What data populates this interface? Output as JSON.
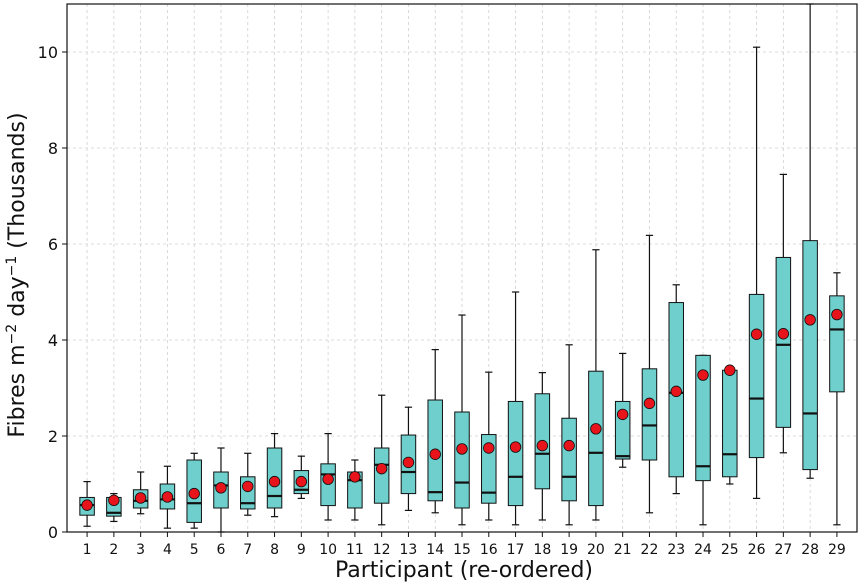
{
  "chart_data": {
    "type": "box",
    "title": "",
    "xlabel": "Participant (re-ordered)",
    "ylabel_main": "Fibres m",
    "ylabel_sup1": "−2",
    "ylabel_mid": " day",
    "ylabel_sup2": "−1",
    "ylabel_end": " (Thousands)",
    "ylim": [
      0,
      11
    ],
    "yticks": [
      0,
      2,
      4,
      6,
      8,
      10
    ],
    "ytick_labels": [
      "0",
      "2",
      "4",
      "6",
      "8",
      "10"
    ],
    "grid": true,
    "colors": {
      "box_fill": "#6ecfcc",
      "box_edge": "#111111",
      "mean_marker": "#e8141c",
      "grid": "#d0d0d0"
    },
    "participants": [
      {
        "label": "1",
        "whislo": 0.12,
        "q1": 0.35,
        "med": 0.56,
        "q3": 0.72,
        "whishi": 1.05,
        "mean": 0.56
      },
      {
        "label": "2",
        "whislo": 0.22,
        "q1": 0.33,
        "med": 0.4,
        "q3": 0.72,
        "whishi": 0.8,
        "mean": 0.66
      },
      {
        "label": "3",
        "whislo": 0.38,
        "q1": 0.5,
        "med": 0.65,
        "q3": 0.88,
        "whishi": 1.25,
        "mean": 0.71
      },
      {
        "label": "4",
        "whislo": 0.08,
        "q1": 0.48,
        "med": 0.68,
        "q3": 1.0,
        "whishi": 1.37,
        "mean": 0.73
      },
      {
        "label": "5",
        "whislo": 0.08,
        "q1": 0.2,
        "med": 0.6,
        "q3": 1.5,
        "whishi": 1.64,
        "mean": 0.8
      },
      {
        "label": "6",
        "whislo": 0.0,
        "q1": 0.5,
        "med": 0.97,
        "q3": 1.25,
        "whishi": 1.75,
        "mean": 0.92
      },
      {
        "label": "7",
        "whislo": 0.35,
        "q1": 0.48,
        "med": 0.6,
        "q3": 1.15,
        "whishi": 1.64,
        "mean": 0.95
      },
      {
        "label": "8",
        "whislo": 0.32,
        "q1": 0.5,
        "med": 0.75,
        "q3": 1.75,
        "whishi": 2.05,
        "mean": 1.05
      },
      {
        "label": "9",
        "whislo": 0.7,
        "q1": 0.8,
        "med": 0.88,
        "q3": 1.28,
        "whishi": 1.58,
        "mean": 1.05
      },
      {
        "label": "10",
        "whislo": 0.25,
        "q1": 0.55,
        "med": 1.2,
        "q3": 1.42,
        "whishi": 2.05,
        "mean": 1.1
      },
      {
        "label": "11",
        "whislo": 0.25,
        "q1": 0.5,
        "med": 1.08,
        "q3": 1.25,
        "whishi": 1.5,
        "mean": 1.15
      },
      {
        "label": "12",
        "whislo": 0.15,
        "q1": 0.6,
        "med": 1.4,
        "q3": 1.75,
        "whishi": 2.85,
        "mean": 1.32
      },
      {
        "label": "13",
        "whislo": 0.45,
        "q1": 0.8,
        "med": 1.25,
        "q3": 2.02,
        "whishi": 2.6,
        "mean": 1.45
      },
      {
        "label": "14",
        "whislo": 0.4,
        "q1": 0.65,
        "med": 0.83,
        "q3": 2.75,
        "whishi": 3.8,
        "mean": 1.62
      },
      {
        "label": "15",
        "whislo": 0.15,
        "q1": 0.5,
        "med": 1.03,
        "q3": 2.5,
        "whishi": 4.52,
        "mean": 1.73
      },
      {
        "label": "16",
        "whislo": 0.25,
        "q1": 0.6,
        "med": 0.82,
        "q3": 2.03,
        "whishi": 3.33,
        "mean": 1.75
      },
      {
        "label": "17",
        "whislo": 0.15,
        "q1": 0.55,
        "med": 1.15,
        "q3": 2.72,
        "whishi": 5.0,
        "mean": 1.77
      },
      {
        "label": "18",
        "whislo": 0.25,
        "q1": 0.9,
        "med": 1.63,
        "q3": 2.88,
        "whishi": 3.32,
        "mean": 1.8
      },
      {
        "label": "19",
        "whislo": 0.15,
        "q1": 0.65,
        "med": 1.15,
        "q3": 2.37,
        "whishi": 3.9,
        "mean": 1.8
      },
      {
        "label": "20",
        "whislo": 0.25,
        "q1": 0.55,
        "med": 1.65,
        "q3": 3.35,
        "whishi": 5.88,
        "mean": 2.15
      },
      {
        "label": "21",
        "whislo": 1.35,
        "q1": 1.52,
        "med": 1.58,
        "q3": 2.72,
        "whishi": 3.72,
        "mean": 2.45
      },
      {
        "label": "22",
        "whislo": 0.4,
        "q1": 1.5,
        "med": 2.22,
        "q3": 3.4,
        "whishi": 6.18,
        "mean": 2.68
      },
      {
        "label": "23",
        "whislo": 0.8,
        "q1": 1.15,
        "med": 2.9,
        "q3": 4.78,
        "whishi": 5.15,
        "mean": 2.93
      },
      {
        "label": "24",
        "whislo": 0.15,
        "q1": 1.07,
        "med": 1.37,
        "q3": 3.68,
        "whishi": 3.68,
        "mean": 3.27
      },
      {
        "label": "25",
        "whislo": 1.0,
        "q1": 1.15,
        "med": 1.62,
        "q3": 3.37,
        "whishi": 3.37,
        "mean": 3.37
      },
      {
        "label": "26",
        "whislo": 0.7,
        "q1": 1.55,
        "med": 2.78,
        "q3": 4.95,
        "whishi": 10.1,
        "mean": 4.12
      },
      {
        "label": "27",
        "whislo": 1.65,
        "q1": 2.18,
        "med": 3.9,
        "q3": 5.72,
        "whishi": 7.45,
        "mean": 4.13
      },
      {
        "label": "28",
        "whislo": 1.12,
        "q1": 1.3,
        "med": 2.47,
        "q3": 6.07,
        "whishi": 11.0,
        "mean": 4.42
      },
      {
        "label": "29",
        "whislo": 0.15,
        "q1": 2.92,
        "med": 4.22,
        "q3": 4.92,
        "whishi": 5.4,
        "mean": 4.53
      }
    ]
  }
}
